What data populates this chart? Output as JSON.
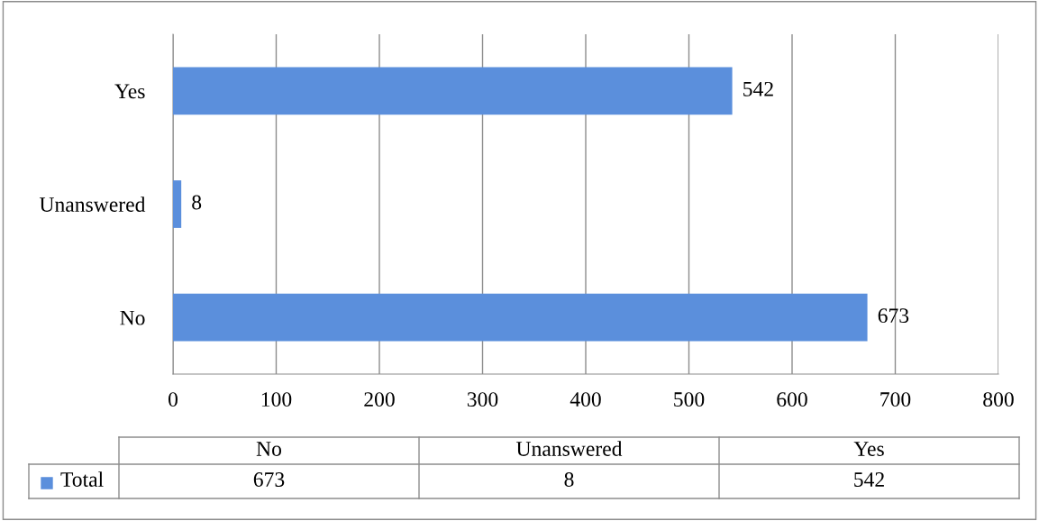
{
  "chart_data": {
    "type": "bar",
    "orientation": "horizontal",
    "categories": [
      "Yes",
      "Unanswered",
      "No"
    ],
    "series": [
      {
        "name": "Total",
        "color": "#5b8fdc",
        "values": [
          542,
          8,
          673
        ]
      }
    ],
    "xlim": [
      0,
      800
    ],
    "xticks": [
      0,
      100,
      200,
      300,
      400,
      500,
      600,
      700,
      800
    ],
    "annotations": [
      "673",
      "8",
      "542"
    ],
    "grid": "x",
    "data_labels": true,
    "legend": "bottom"
  }
}
